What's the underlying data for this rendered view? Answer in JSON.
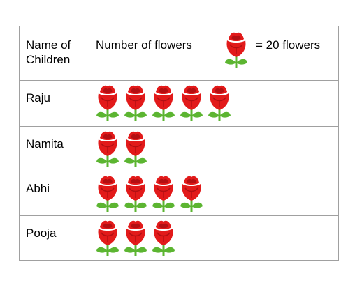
{
  "header": {
    "col1_line1": "Name of",
    "col1_line2": "Children",
    "col2_label": "Number of flowers",
    "key_label": "= 20 flowers",
    "key_icon": "rose-icon",
    "key_value": 20
  },
  "chart_data": {
    "type": "table",
    "title": "",
    "key": {
      "icon": "rose",
      "value": 20,
      "label": "= 20 flowers"
    },
    "categories": [
      "Raju",
      "Namita",
      "Abhi",
      "Pooja"
    ],
    "icon_counts": [
      5,
      2,
      4,
      3
    ],
    "values": [
      100,
      40,
      80,
      60
    ]
  },
  "colors": {
    "petal": "#e21a1a",
    "petal_dark": "#b30f12",
    "leaf": "#5cb531",
    "border": "#a0a0a0"
  }
}
